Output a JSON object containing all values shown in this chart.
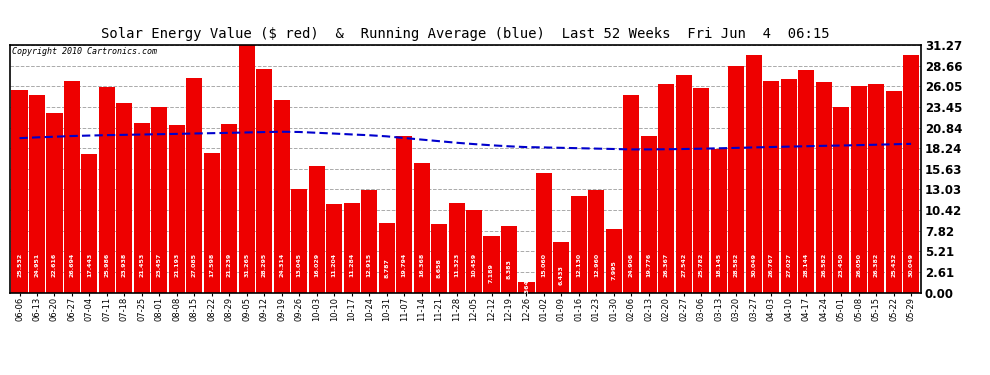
{
  "title": "Solar Energy Value ($ red)  &  Running Average (blue)  Last 52 Weeks  Fri Jun  4  06:15",
  "copyright": "Copyright 2010 Cartronics.com",
  "bar_color": "#ee0000",
  "avg_line_color": "#0000cc",
  "background_color": "#ffffff",
  "plot_bg_color": "#ffffff",
  "grid_color": "#aaaaaa",
  "ylim": [
    0,
    31.27
  ],
  "yticks": [
    0.0,
    2.61,
    5.21,
    7.82,
    10.42,
    13.03,
    15.63,
    18.24,
    20.84,
    23.45,
    26.05,
    28.66,
    31.27
  ],
  "dates": [
    "06-06",
    "06-13",
    "06-20",
    "06-27",
    "07-04",
    "07-11",
    "07-18",
    "07-25",
    "08-01",
    "08-08",
    "08-15",
    "08-22",
    "08-29",
    "09-05",
    "09-12",
    "09-19",
    "09-26",
    "10-03",
    "10-10",
    "10-17",
    "10-24",
    "10-31",
    "11-07",
    "11-14",
    "11-21",
    "11-28",
    "12-05",
    "12-12",
    "12-19",
    "12-26",
    "01-02",
    "01-09",
    "01-16",
    "01-23",
    "01-30",
    "02-06",
    "02-13",
    "02-20",
    "02-27",
    "03-06",
    "03-13",
    "03-20",
    "03-27",
    "04-03",
    "04-10",
    "04-17",
    "04-24",
    "05-01",
    "05-08",
    "05-15",
    "05-22",
    "05-29"
  ],
  "values": [
    25.532,
    24.951,
    22.616,
    26.694,
    17.443,
    25.986,
    23.938,
    21.453,
    23.457,
    21.193,
    27.085,
    17.598,
    21.239,
    31.265,
    28.295,
    24.314,
    13.045,
    16.029,
    11.204,
    11.284,
    12.915,
    8.787,
    19.794,
    16.368,
    8.658,
    11.323,
    10.459,
    7.189,
    8.383,
    1.364,
    15.06,
    6.433,
    12.13,
    12.96,
    7.995,
    24.906,
    19.776,
    26.367,
    27.542,
    25.782,
    18.145,
    28.582,
    30.049,
    26.767,
    27.027,
    28.144,
    26.582,
    23.45,
    26.05,
    26.382,
    25.432,
    30.049
  ],
  "running_avg": [
    19.5,
    19.6,
    19.68,
    19.77,
    19.83,
    19.88,
    19.92,
    19.96,
    20.0,
    20.04,
    20.09,
    20.13,
    20.17,
    20.22,
    20.27,
    20.31,
    20.28,
    20.18,
    20.08,
    19.97,
    19.87,
    19.73,
    19.52,
    19.32,
    19.12,
    18.92,
    18.75,
    18.6,
    18.47,
    18.37,
    18.33,
    18.28,
    18.23,
    18.18,
    18.13,
    18.08,
    18.08,
    18.1,
    18.13,
    18.17,
    18.22,
    18.27,
    18.33,
    18.38,
    18.43,
    18.48,
    18.53,
    18.57,
    18.62,
    18.67,
    18.73,
    18.78
  ],
  "yticklabels": [
    "0.00",
    "2.61",
    "5.21",
    "7.82",
    "10.42",
    "13.03",
    "15.63",
    "18.24",
    "20.84",
    "23.45",
    "26.05",
    "28.66",
    "31.27"
  ]
}
